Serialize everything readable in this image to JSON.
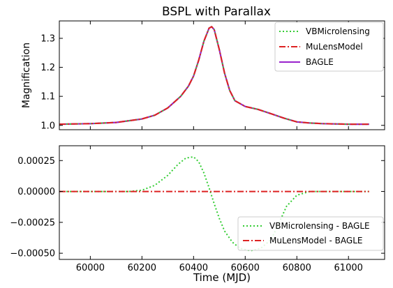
{
  "chart_data": [
    {
      "type": "line",
      "title": "BSPL with Parallax",
      "ylabel": "Magnification",
      "xlabel": "",
      "xlim": [
        59880,
        61140
      ],
      "ylim": [
        0.985,
        1.36
      ],
      "yticks": [
        1.0,
        1.1,
        1.2,
        1.3
      ],
      "ytick_labels": [
        "1.0",
        "1.1",
        "1.2",
        "1.3"
      ],
      "legend_position": "top-right",
      "x": [
        59880,
        60000,
        60100,
        60200,
        60250,
        60300,
        60350,
        60380,
        60400,
        60420,
        60440,
        60460,
        60470,
        60480,
        60500,
        60520,
        60540,
        60560,
        60600,
        60650,
        60700,
        60750,
        60800,
        60850,
        60900,
        61000,
        61080
      ],
      "series": [
        {
          "name": "VBMicrolensing",
          "style": "dotted",
          "color": "#33cc33",
          "values": [
            1.004,
            1.006,
            1.01,
            1.022,
            1.035,
            1.06,
            1.1,
            1.135,
            1.17,
            1.225,
            1.29,
            1.335,
            1.34,
            1.33,
            1.26,
            1.18,
            1.12,
            1.085,
            1.065,
            1.055,
            1.04,
            1.025,
            1.012,
            1.008,
            1.006,
            1.004,
            1.004
          ]
        },
        {
          "name": "MuLensModel",
          "style": "dashdot",
          "color": "#dd2222",
          "values": [
            1.004,
            1.006,
            1.01,
            1.022,
            1.035,
            1.06,
            1.1,
            1.135,
            1.17,
            1.225,
            1.29,
            1.335,
            1.34,
            1.33,
            1.26,
            1.18,
            1.12,
            1.085,
            1.065,
            1.055,
            1.04,
            1.025,
            1.012,
            1.008,
            1.006,
            1.004,
            1.004
          ]
        },
        {
          "name": "BAGLE",
          "style": "solid",
          "color": "#9922cc",
          "values": [
            1.004,
            1.006,
            1.01,
            1.022,
            1.035,
            1.06,
            1.1,
            1.135,
            1.17,
            1.225,
            1.29,
            1.335,
            1.34,
            1.33,
            1.26,
            1.18,
            1.12,
            1.085,
            1.065,
            1.055,
            1.04,
            1.025,
            1.012,
            1.008,
            1.006,
            1.004,
            1.004
          ]
        }
      ]
    },
    {
      "type": "line",
      "title": "",
      "xlabel": "Time (MJD)",
      "ylabel": "",
      "xlim": [
        59880,
        61140
      ],
      "ylim": [
        -0.00055,
        0.00037
      ],
      "xticks": [
        60000,
        60200,
        60400,
        60600,
        60800,
        61000
      ],
      "xtick_labels": [
        "60000",
        "60200",
        "60400",
        "60600",
        "60800",
        "61000"
      ],
      "yticks": [
        0.00025,
        0.0,
        -0.00025,
        -0.0005
      ],
      "ytick_labels": [
        "0.00025",
        "0.00000",
        "−0.00025",
        "−0.00050"
      ],
      "legend_position": "bottom-right",
      "x": [
        59880,
        60000,
        60150,
        60200,
        60250,
        60300,
        60340,
        60370,
        60400,
        60420,
        60440,
        60460,
        60480,
        60500,
        60520,
        60550,
        60580,
        60620,
        60660,
        60700,
        60730,
        60760,
        60800,
        60850,
        60900,
        61000,
        61080
      ],
      "series": [
        {
          "name": "VBMicrolensing - BAGLE",
          "style": "dotted",
          "color": "#33cc33",
          "values": [
            0.0,
            0.0,
            0.0,
            1e-05,
            5e-05,
            0.00013,
            0.00022,
            0.00027,
            0.00028,
            0.00024,
            0.00015,
            3e-05,
            -0.0001,
            -0.00022,
            -0.00032,
            -0.00041,
            -0.00046,
            -0.00048,
            -0.00046,
            -0.00039,
            -0.00026,
            -0.00012,
            -3e-05,
            0.0,
            0.0,
            0.0,
            0.0
          ]
        },
        {
          "name": "MuLensModel - BAGLE",
          "style": "dashdot",
          "color": "#dd2222",
          "values": [
            0.0,
            0.0,
            0.0,
            0.0,
            0.0,
            0.0,
            0.0,
            0.0,
            0.0,
            0.0,
            0.0,
            0.0,
            0.0,
            0.0,
            0.0,
            0.0,
            0.0,
            0.0,
            0.0,
            0.0,
            0.0,
            0.0,
            0.0,
            0.0,
            0.0,
            0.0,
            0.0
          ]
        }
      ]
    }
  ]
}
